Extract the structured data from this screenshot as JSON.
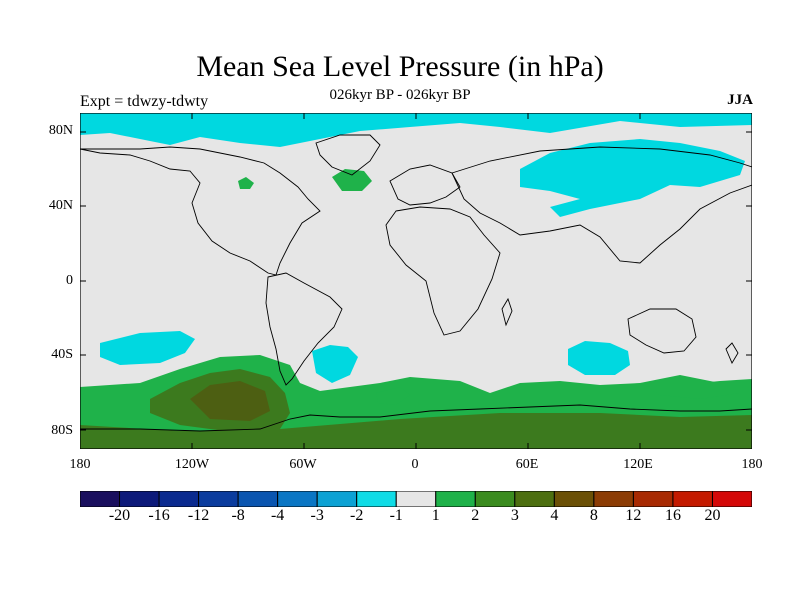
{
  "title": "Mean Sea Level Pressure (in hPa)",
  "subtitle_left": "Expt = tdwzy-tdwty",
  "subtitle_center": "026kyr BP - 026kyr BP",
  "subtitle_right": "JJA",
  "lat_ticks": [
    "80N",
    "40N",
    "0",
    "40S",
    "80S"
  ],
  "lon_ticks": [
    "180",
    "120W",
    "60W",
    "0",
    "60E",
    "120E",
    "180"
  ],
  "colorbar": {
    "labels": [
      "-20",
      "-16",
      "-12",
      "-8",
      "-4",
      "-3",
      "-2",
      "-1",
      "1",
      "2",
      "3",
      "4",
      "8",
      "12",
      "16",
      "20"
    ],
    "colors": [
      "#1a0f5e",
      "#0d1a7a",
      "#0a2a8f",
      "#0b3c9e",
      "#0a55b0",
      "#0a76c4",
      "#0ca2d4",
      "#0fdce6",
      "#e6e6e6",
      "#1fb24a",
      "#3b8c1f",
      "#4d6f10",
      "#6b5006",
      "#8c3c04",
      "#a82a02",
      "#c41a00",
      "#d40808"
    ]
  },
  "map_colors": {
    "background": "#e6e6e6",
    "cyan": "#00d8e0",
    "green": "#1fb24a",
    "darkgreen": "#3c7a1e",
    "olive": "#4d5f12"
  }
}
